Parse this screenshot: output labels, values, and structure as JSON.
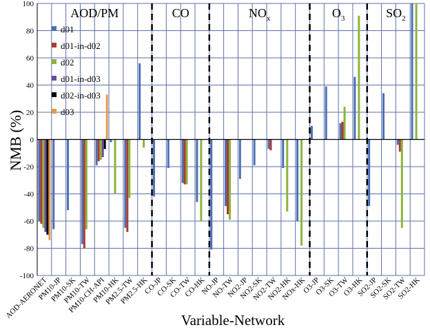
{
  "chart_data": {
    "type": "bar",
    "xlabel": "Variable-Network",
    "ylabel": "NMB (%)",
    "ylim": [
      -100,
      100
    ],
    "yticks": [
      -100,
      -80,
      -60,
      -40,
      -20,
      0,
      20,
      40,
      60,
      80,
      100
    ],
    "grid": true,
    "legend_position": "top-left",
    "categories": [
      "AOD-AERONET",
      "PM10-JP",
      "PM10-SK",
      "PM10-TW",
      "PM10-CH-API",
      "PM10-HK",
      "PM2.5-TW",
      "PM2.5-HK",
      "CO-JP",
      "CO-SK",
      "CO-TW",
      "CO-HK",
      "NO-JP",
      "NO-TW",
      "NO2-JP",
      "NO2-SK",
      "NO2-TW",
      "NO2-HK",
      "NOx-HK",
      "O3-JP",
      "O3-SK",
      "O3-TW",
      "O3-HK",
      "SO2-JP",
      "SO2-SK",
      "SO2-TW",
      "SO2-HK"
    ],
    "groups": [
      {
        "label": "AOD/PM",
        "sub": ""
      },
      {
        "label": "CO",
        "sub": ""
      },
      {
        "label": "NO",
        "sub": "x"
      },
      {
        "label": "O",
        "sub": "3"
      },
      {
        "label": "SO",
        "sub": "2"
      }
    ],
    "separators_after": [
      "PM2.5-HK",
      "CO-HK",
      "NOx-HK",
      "O3-HK"
    ],
    "series": [
      {
        "name": "d01",
        "color": "#4a6fb5",
        "values": [
          -60,
          -66,
          -52,
          -77,
          -19,
          -2,
          -65,
          56,
          -42,
          -21,
          -32,
          -46,
          -81,
          -49,
          -29,
          -19,
          -7,
          -21,
          -60,
          10,
          39,
          12,
          46,
          -49,
          34,
          -4,
          100
        ]
      },
      {
        "name": "d01-in-d02",
        "color": "#b03a30",
        "values": [
          -62,
          null,
          null,
          -80,
          -16,
          null,
          -68,
          null,
          null,
          null,
          -33,
          null,
          null,
          -55,
          null,
          null,
          -8,
          null,
          null,
          null,
          null,
          13,
          null,
          null,
          null,
          -9,
          null
        ]
      },
      {
        "name": "d02",
        "color": "#8db33c",
        "values": [
          -65,
          null,
          null,
          -66,
          -15,
          -40,
          -43,
          -6,
          null,
          null,
          -33,
          -60,
          null,
          -59,
          null,
          null,
          null,
          -53,
          -78,
          null,
          null,
          24,
          91,
          null,
          null,
          -65,
          100
        ]
      },
      {
        "name": "d01-in-d03",
        "color": "#6b4a9e",
        "values": [
          -68,
          null,
          null,
          null,
          -13,
          null,
          null,
          null,
          null,
          null,
          null,
          null,
          null,
          null,
          null,
          null,
          null,
          null,
          null,
          null,
          null,
          null,
          null,
          null,
          null,
          null,
          null
        ]
      },
      {
        "name": "d02-in-d03",
        "color": "#000000",
        "values": [
          -70,
          null,
          null,
          null,
          -7,
          null,
          null,
          null,
          null,
          null,
          null,
          null,
          null,
          null,
          null,
          null,
          null,
          null,
          null,
          null,
          null,
          null,
          null,
          null,
          null,
          null,
          null
        ]
      },
      {
        "name": "d03",
        "color": "#e69a4c",
        "values": [
          -74,
          null,
          null,
          null,
          33,
          null,
          null,
          null,
          null,
          null,
          null,
          null,
          null,
          null,
          null,
          null,
          null,
          null,
          null,
          null,
          null,
          null,
          null,
          null,
          null,
          null,
          null
        ]
      }
    ]
  }
}
